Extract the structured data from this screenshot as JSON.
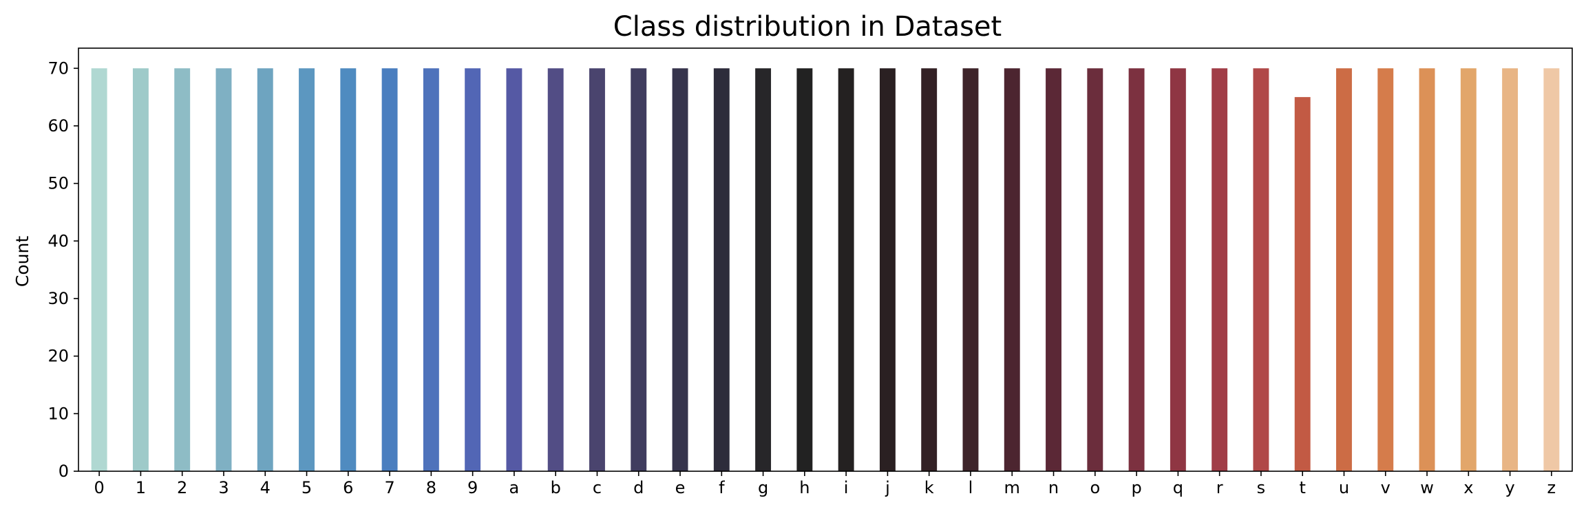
{
  "chart_data": {
    "type": "bar",
    "title": "Class distribution in Dataset",
    "xlabel": "",
    "ylabel": "Count",
    "ylim": [
      0,
      73.5
    ],
    "yticks": [
      0,
      10,
      20,
      30,
      40,
      50,
      60,
      70
    ],
    "grid": false,
    "categories": [
      "0",
      "1",
      "2",
      "3",
      "4",
      "5",
      "6",
      "7",
      "8",
      "9",
      "a",
      "b",
      "c",
      "d",
      "e",
      "f",
      "g",
      "h",
      "i",
      "j",
      "k",
      "l",
      "m",
      "n",
      "o",
      "p",
      "q",
      "r",
      "s",
      "t",
      "u",
      "v",
      "w",
      "x",
      "y",
      "z"
    ],
    "values": [
      70,
      70,
      70,
      70,
      70,
      70,
      70,
      70,
      70,
      70,
      70,
      70,
      70,
      70,
      70,
      70,
      70,
      70,
      70,
      70,
      70,
      70,
      70,
      70,
      70,
      70,
      70,
      70,
      70,
      65,
      70,
      70,
      70,
      70,
      70,
      70
    ],
    "colors": [
      "#b0d8d2",
      "#9ecac9",
      "#8ebcc5",
      "#7fb0c3",
      "#6ea4c0",
      "#5c97c0",
      "#4f8bc0",
      "#4a7ebf",
      "#4e72bb",
      "#5266b5",
      "#5559a4",
      "#524d85",
      "#4a446e",
      "#403d5f",
      "#36344c",
      "#2d2c3b",
      "#272629",
      "#222222",
      "#242121",
      "#2a2022",
      "#332125",
      "#3e242a",
      "#4c2530",
      "#5b2836",
      "#6b2d3c",
      "#7c3140",
      "#8f3643",
      "#a13d47",
      "#b04848",
      "#c25a44",
      "#cc6c45",
      "#d57c4b",
      "#dc9157",
      "#e2a66a",
      "#e8b585",
      "#efc8a6"
    ]
  }
}
